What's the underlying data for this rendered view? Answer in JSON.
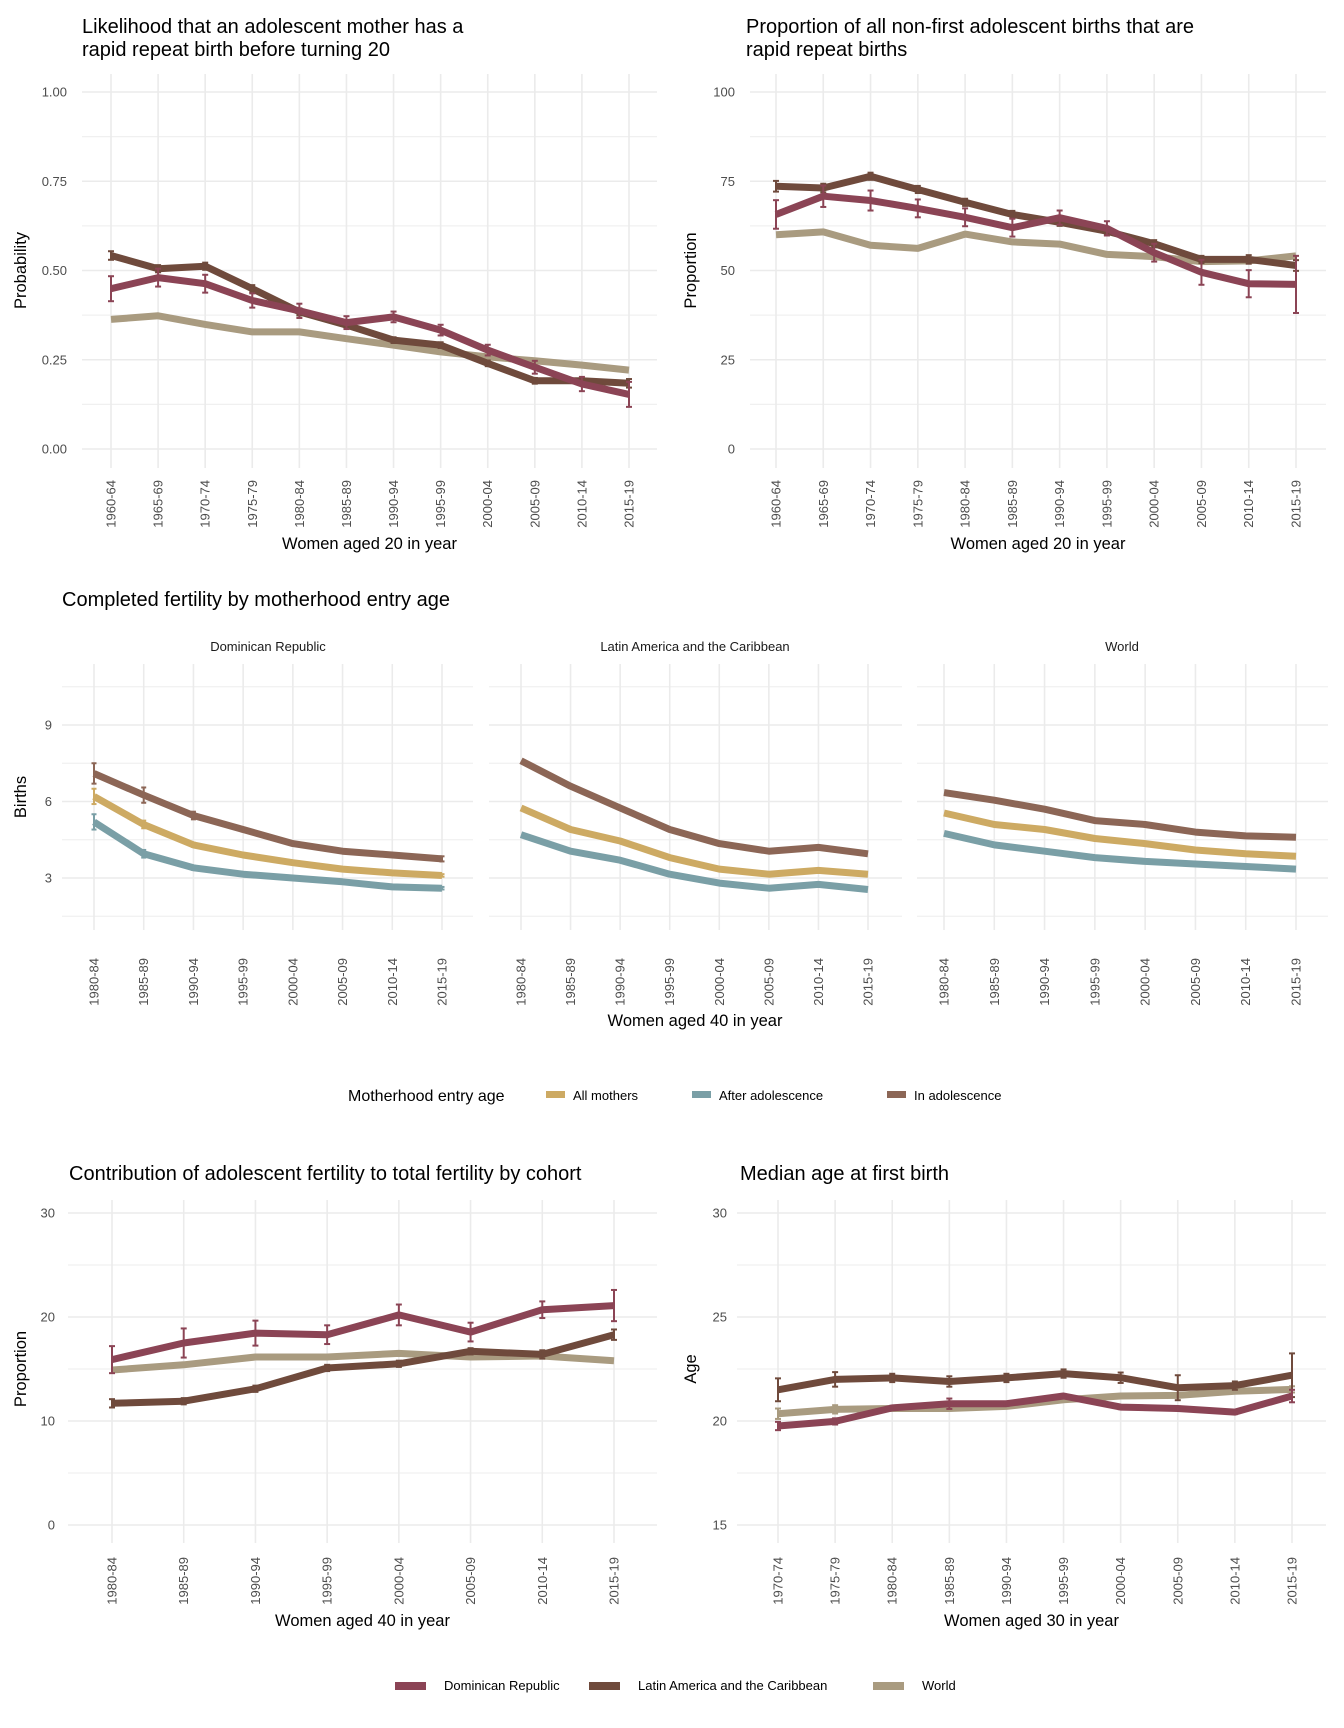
{
  "colors": {
    "Dominican Republic": "#8b4455",
    "Latin America and the Caribbean": "#6f4a3c",
    "World": "#a99b80",
    "All mothers": "#cdaa63",
    "After adolescence": "#7a9fa6",
    "In adolescence": "#8c6656"
  },
  "legend_region": {
    "items": [
      "Dominican Republic",
      "Latin America and the Caribbean",
      "World"
    ]
  },
  "legend_entry_age": {
    "title": "Motherhood entry age",
    "items": [
      "All mothers",
      "After adolescence",
      "In adolescence"
    ]
  },
  "chart_data": [
    {
      "id": "rapid-repeat-likelihood",
      "type": "line",
      "title": [
        "Likelihood that an adolescent mother has a",
        "rapid repeat birth before turning 20"
      ],
      "xlabel": "Women aged 20 in year",
      "ylabel": "Probability",
      "ylim": [
        0,
        1
      ],
      "yticks": [
        0,
        0.25,
        0.5,
        0.75,
        1.0
      ],
      "ytick_labels": [
        "0.00",
        "0.25",
        "0.50",
        "0.75",
        "1.00"
      ],
      "grid": true,
      "categories": [
        "1960-64",
        "1965-69",
        "1970-74",
        "1975-79",
        "1980-84",
        "1985-89",
        "1990-94",
        "1995-99",
        "2000-04",
        "2005-09",
        "2010-14",
        "2015-19"
      ],
      "series": [
        {
          "name": "World",
          "values": [
            0.363,
            0.373,
            0.349,
            0.328,
            0.328,
            0.309,
            0.291,
            0.272,
            0.258,
            0.247,
            0.235,
            0.221
          ]
        },
        {
          "name": "Latin America and the Caribbean",
          "values": [
            0.542,
            0.505,
            0.512,
            0.449,
            0.384,
            0.347,
            0.305,
            0.291,
            0.24,
            0.191,
            0.191,
            0.184
          ],
          "error": [
            0.012,
            0.01,
            0.01,
            0.01,
            0.01,
            0.008,
            0.008,
            0.008,
            0.008,
            0.008,
            0.008,
            0.012
          ]
        },
        {
          "name": "Dominican Republic",
          "values": [
            0.449,
            0.48,
            0.463,
            0.416,
            0.387,
            0.354,
            0.37,
            0.333,
            0.277,
            0.229,
            0.182,
            0.153
          ],
          "error": [
            0.035,
            0.025,
            0.025,
            0.02,
            0.02,
            0.018,
            0.015,
            0.015,
            0.015,
            0.018,
            0.02,
            0.035
          ]
        }
      ]
    },
    {
      "id": "rapid-repeat-proportion",
      "type": "line",
      "title": [
        "Proportion of all non-first adolescent births that are",
        "rapid repeat births"
      ],
      "xlabel": "Women aged 20 in year",
      "ylabel": "Proportion",
      "ylim": [
        0,
        100
      ],
      "yticks": [
        0,
        25,
        50,
        75,
        100
      ],
      "ytick_labels": [
        "0",
        "25",
        "50",
        "75",
        "100"
      ],
      "grid": true,
      "categories": [
        "1960-64",
        "1965-69",
        "1970-74",
        "1975-79",
        "1980-84",
        "1985-89",
        "1990-94",
        "1995-99",
        "2000-04",
        "2005-09",
        "2010-14",
        "2015-19"
      ],
      "series": [
        {
          "name": "World",
          "values": [
            60.0,
            60.8,
            57.1,
            56.2,
            60.2,
            58.0,
            57.4,
            54.5,
            53.9,
            52.5,
            52.7,
            54.1
          ]
        },
        {
          "name": "Latin America and the Caribbean",
          "values": [
            73.6,
            73.1,
            76.4,
            72.7,
            69.1,
            65.7,
            63.5,
            61.0,
            57.5,
            53.1,
            53.1,
            51.4
          ],
          "error": [
            1.5,
            1.2,
            1.0,
            1.0,
            1.0,
            1.0,
            1.0,
            1.0,
            1.0,
            1.0,
            1.2,
            1.5
          ]
        },
        {
          "name": "Dominican Republic",
          "values": [
            65.7,
            70.8,
            69.6,
            67.4,
            64.9,
            62.0,
            64.8,
            61.8,
            55.0,
            49.5,
            46.3,
            46.1
          ],
          "error": [
            4.0,
            3.0,
            2.8,
            2.5,
            2.5,
            2.5,
            2.0,
            2.0,
            2.5,
            3.5,
            3.8,
            8.0
          ]
        }
      ]
    },
    {
      "id": "completed-fertility",
      "type": "line",
      "title": "Completed fertility by motherhood entry age",
      "xlabel": "Women aged 40 in year",
      "ylabel": "Births",
      "ylim": [
        0.8,
        11.5
      ],
      "yticks": [
        3,
        6,
        9
      ],
      "ytick_labels": [
        "3",
        "6",
        "9"
      ],
      "grid": true,
      "categories": [
        "1980-84",
        "1985-89",
        "1990-94",
        "1995-99",
        "2000-04",
        "2005-09",
        "2010-14",
        "2015-19"
      ],
      "facets": [
        {
          "strip": "Dominican Republic",
          "series": [
            {
              "name": "After adolescence",
              "values": [
                5.2,
                3.95,
                3.4,
                3.15,
                3.0,
                2.85,
                2.65,
                2.6
              ],
              "error": [
                0.3,
                0.15,
                0.08,
                0.05,
                0.05,
                0.05,
                0.05,
                0.05
              ]
            },
            {
              "name": "All mothers",
              "values": [
                6.2,
                5.1,
                4.3,
                3.9,
                3.6,
                3.35,
                3.2,
                3.1
              ],
              "error": [
                0.3,
                0.15,
                0.08,
                0.05,
                0.05,
                0.05,
                0.05,
                0.05
              ]
            },
            {
              "name": "In adolescence",
              "values": [
                7.1,
                6.25,
                5.45,
                4.9,
                4.35,
                4.05,
                3.9,
                3.75
              ],
              "error": [
                0.4,
                0.3,
                0.15,
                0.08,
                0.05,
                0.05,
                0.05,
                0.1
              ]
            }
          ]
        },
        {
          "strip": "Latin America and the Caribbean",
          "series": [
            {
              "name": "After adolescence",
              "values": [
                4.7,
                4.05,
                3.7,
                3.15,
                2.8,
                2.6,
                2.75,
                2.55
              ]
            },
            {
              "name": "All mothers",
              "values": [
                5.75,
                4.9,
                4.45,
                3.8,
                3.35,
                3.15,
                3.3,
                3.15
              ]
            },
            {
              "name": "In adolescence",
              "values": [
                7.6,
                6.6,
                5.75,
                4.9,
                4.35,
                4.05,
                4.2,
                3.95
              ]
            }
          ]
        },
        {
          "strip": "World",
          "series": [
            {
              "name": "After adolescence",
              "values": [
                4.75,
                4.3,
                4.05,
                3.8,
                3.65,
                3.55,
                3.45,
                3.35
              ]
            },
            {
              "name": "All mothers",
              "values": [
                5.55,
                5.1,
                4.9,
                4.55,
                4.35,
                4.1,
                3.95,
                3.85
              ]
            },
            {
              "name": "In adolescence",
              "values": [
                6.35,
                6.05,
                5.7,
                5.25,
                5.1,
                4.8,
                4.65,
                4.6
              ]
            }
          ]
        }
      ]
    },
    {
      "id": "adolescent-contribution",
      "type": "line",
      "title": "Contribution of adolescent fertility to total fertility by cohort",
      "xlabel": "Women aged 40 in year",
      "ylabel": "Proportion",
      "ylim": [
        0,
        30
      ],
      "yticks": [
        0,
        10,
        20,
        30
      ],
      "ytick_labels": [
        "0",
        "10",
        "20",
        "30"
      ],
      "grid": true,
      "categories": [
        "1980-84",
        "1985-89",
        "1990-94",
        "1995-99",
        "2000-04",
        "2005-09",
        "2010-14",
        "2015-19"
      ],
      "series": [
        {
          "name": "World",
          "values": [
            14.9,
            15.4,
            16.15,
            16.15,
            16.5,
            16.15,
            16.25,
            15.8
          ]
        },
        {
          "name": "Latin America and the Caribbean",
          "values": [
            11.7,
            11.9,
            13.1,
            15.1,
            15.5,
            16.7,
            16.4,
            18.3
          ],
          "error": [
            0.4,
            0.3,
            0.3,
            0.3,
            0.3,
            0.3,
            0.4,
            0.5
          ]
        },
        {
          "name": "Dominican Republic",
          "values": [
            15.9,
            17.5,
            18.45,
            18.3,
            20.2,
            18.55,
            20.7,
            21.1
          ],
          "error": [
            1.3,
            1.4,
            1.2,
            0.9,
            1.0,
            0.9,
            0.8,
            1.5
          ]
        }
      ]
    },
    {
      "id": "median-age-first-birth",
      "type": "line",
      "title": "Median age at first birth",
      "xlabel": "Women aged 30 in year",
      "ylabel": "Age",
      "ylim": [
        15,
        30
      ],
      "yticks": [
        15,
        20,
        25,
        30
      ],
      "ytick_labels": [
        "15",
        "20",
        "25",
        "30"
      ],
      "grid": true,
      "categories": [
        "1970-74",
        "1975-79",
        "1980-84",
        "1985-89",
        "1990-94",
        "1995-99",
        "2000-04",
        "2005-09",
        "2010-14",
        "2015-19"
      ],
      "series": [
        {
          "name": "World",
          "values": [
            20.35,
            20.56,
            20.6,
            20.6,
            20.7,
            21.02,
            21.2,
            21.23,
            21.43,
            21.52
          ],
          "error": [
            0.25,
            0.2,
            0.1,
            0.1,
            0.1,
            0.1,
            0.1,
            0.1,
            0.1,
            0.15
          ]
        },
        {
          "name": "Latin America and the Caribbean",
          "values": [
            21.5,
            22.0,
            22.07,
            21.9,
            22.07,
            22.28,
            22.08,
            21.6,
            21.7,
            22.2
          ],
          "error": [
            0.55,
            0.35,
            0.2,
            0.25,
            0.2,
            0.2,
            0.25,
            0.6,
            0.2,
            1.05
          ]
        },
        {
          "name": "Dominican Republic",
          "values": [
            19.76,
            19.98,
            20.63,
            20.83,
            20.83,
            21.2,
            20.67,
            20.6,
            20.43,
            21.2
          ],
          "error": [
            0.2,
            0.15,
            0.1,
            0.25,
            0.1,
            0.1,
            0.1,
            0.1,
            0.1,
            0.3
          ]
        }
      ]
    }
  ]
}
